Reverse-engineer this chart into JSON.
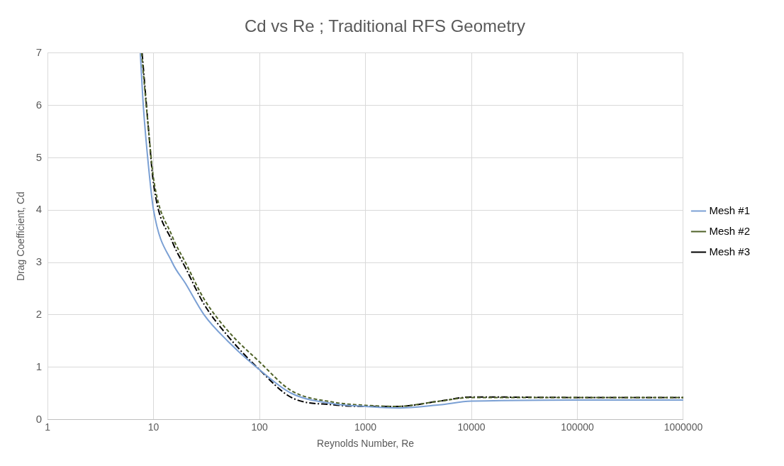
{
  "chart_data": {
    "type": "line",
    "title": "Cd vs Re ; Traditional RFS Geometry",
    "xlabel": "Reynolds Number, Re",
    "ylabel": "Drag Coefficient, Cd",
    "log": "x",
    "xlim": [
      1,
      1000000
    ],
    "xticks": [
      1,
      10,
      100,
      1000,
      10000,
      100000,
      1000000
    ],
    "ylim": [
      0,
      7
    ],
    "yticks": [
      0,
      1,
      2,
      3,
      4,
      5,
      6,
      7
    ],
    "grid": true,
    "legend": "right",
    "marker": "none",
    "series": [
      {
        "name": "Mesh #1",
        "color": "#7ba0d4",
        "line_style": "solid",
        "x": [
          7.5,
          8,
          9,
          10,
          15,
          20,
          30,
          50,
          100,
          200,
          500,
          1000,
          2000,
          5000,
          10000,
          100000,
          1000000
        ],
        "values": [
          7,
          6,
          4.8,
          4,
          3,
          2.6,
          2,
          1.5,
          0.95,
          0.5,
          0.3,
          0.25,
          0.22,
          0.28,
          0.35,
          0.37,
          0.37
        ]
      },
      {
        "name": "Mesh #2",
        "color": "#4f6228",
        "line_style": "dashed",
        "x": [
          7.7,
          9,
          10,
          15,
          20,
          30,
          50,
          100,
          200,
          500,
          1000,
          2000,
          5000,
          10000,
          100000,
          1000000
        ],
        "values": [
          7,
          5.5,
          4.6,
          3.5,
          3,
          2.3,
          1.7,
          1.1,
          0.55,
          0.33,
          0.27,
          0.25,
          0.35,
          0.42,
          0.42,
          0.42
        ]
      },
      {
        "name": "Mesh #3",
        "color": "#000000",
        "line_style": "dashdot",
        "x": [
          7.8,
          9,
          10,
          15,
          20,
          30,
          50,
          100,
          200,
          500,
          1000,
          2000,
          5000,
          10000,
          100000,
          1000000
        ],
        "values": [
          7,
          5.5,
          4.5,
          3.4,
          2.9,
          2.2,
          1.6,
          0.95,
          0.42,
          0.28,
          0.25,
          0.25,
          0.35,
          0.43,
          0.42,
          0.42
        ]
      }
    ]
  }
}
